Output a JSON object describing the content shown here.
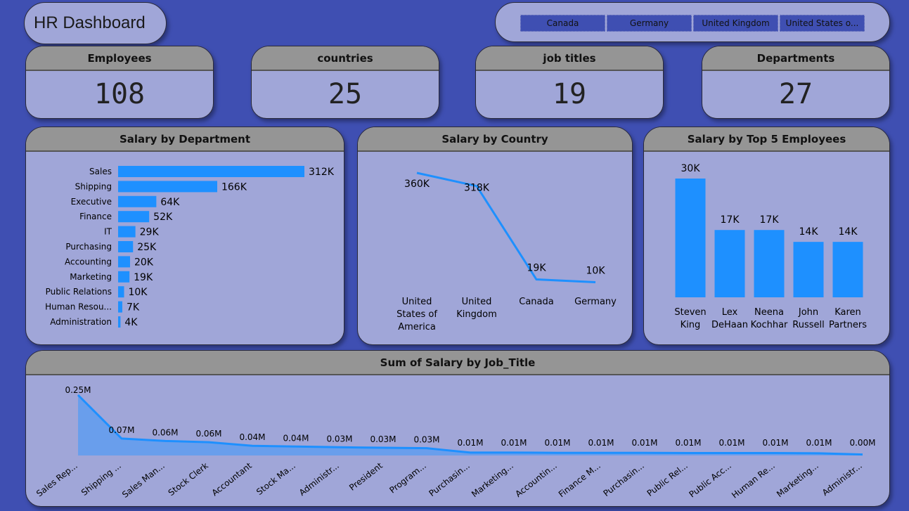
{
  "title": "HR Dashboard",
  "slicer": {
    "options": [
      "Canada",
      "Germany",
      "United Kingdom",
      "United States o..."
    ]
  },
  "kpis": [
    {
      "label": "Employees",
      "value": "108"
    },
    {
      "label": "countries",
      "value": "25"
    },
    {
      "label": "job titles",
      "value": "19"
    },
    {
      "label": "Departments",
      "value": "27"
    }
  ],
  "colors": {
    "background": "#3f4fb2",
    "panel": "#a0a6d8",
    "header": "#959595",
    "accent": "#1e90ff"
  },
  "chart_data": [
    {
      "type": "bar",
      "title": "Salary by Department",
      "categories": [
        "Sales",
        "Shipping",
        "Executive",
        "Finance",
        "IT",
        "Purchasing",
        "Accounting",
        "Marketing",
        "Public Relations",
        "Human Resou...",
        "Administration"
      ],
      "values": [
        312,
        166,
        64,
        52,
        29,
        25,
        20,
        19,
        10,
        7,
        4
      ],
      "labels": [
        "312K",
        "166K",
        "64K",
        "52K",
        "29K",
        "25K",
        "20K",
        "19K",
        "10K",
        "7K",
        "4K"
      ],
      "unit": "K"
    },
    {
      "type": "line",
      "title": "Salary by Country",
      "categories": [
        [
          "United",
          "States of",
          "America"
        ],
        [
          "United",
          "Kingdom"
        ],
        [
          "Canada"
        ],
        [
          "Germany"
        ]
      ],
      "values": [
        360,
        318,
        19,
        10
      ],
      "labels": [
        "360K",
        "318K",
        "19K",
        "10K"
      ]
    },
    {
      "type": "bar",
      "title": "Salary by Top 5 Employees",
      "categories": [
        [
          "Steven",
          "King"
        ],
        [
          "Lex",
          "DeHaan"
        ],
        [
          "Neena",
          "Kochhar"
        ],
        [
          "John",
          "Russell"
        ],
        [
          "Karen",
          "Partners"
        ]
      ],
      "values": [
        30,
        17,
        17,
        14,
        14
      ],
      "labels": [
        "30K",
        "17K",
        "17K",
        "14K",
        "14K"
      ]
    },
    {
      "type": "area",
      "title": "Sum of Salary by Job_Title",
      "categories": [
        "Sales Rep...",
        "Shipping ...",
        "Sales Man...",
        "Stock Clerk",
        "Accountant",
        "Stock Ma...",
        "Administr...",
        "President",
        "Program...",
        "Purchasin...",
        "Marketing...",
        "Accountin...",
        "Finance M...",
        "Purchasin...",
        "Public Rel...",
        "Public Acc...",
        "Human Re...",
        "Marketing...",
        "Administr..."
      ],
      "values": [
        0.25,
        0.07,
        0.06,
        0.055,
        0.04,
        0.037,
        0.034,
        0.032,
        0.03,
        0.012,
        0.012,
        0.011,
        0.011,
        0.011,
        0.01,
        0.01,
        0.01,
        0.009,
        0.004
      ],
      "labels": [
        "0.25M",
        "0.07M",
        "0.06M",
        "0.06M",
        "0.04M",
        "0.04M",
        "0.03M",
        "0.03M",
        "0.03M",
        "0.01M",
        "0.01M",
        "0.01M",
        "0.01M",
        "0.01M",
        "0.01M",
        "0.01M",
        "0.01M",
        "0.01M",
        "0.00M"
      ]
    }
  ]
}
